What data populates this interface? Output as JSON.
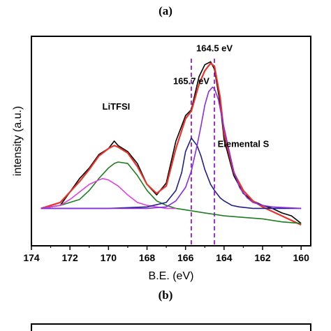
{
  "panel_top_label": "(a)",
  "panel_bottom_label": "(b)",
  "chart_data": {
    "type": "line",
    "title": "",
    "xlabel": "B.E. (eV)",
    "ylabel": "intensity (a.u.)",
    "x_reversed": true,
    "xlim": [
      174,
      159.5
    ],
    "ylim": [
      -0.25,
      1.15
    ],
    "x_ticks": [
      174,
      172,
      170,
      168,
      166,
      164,
      162,
      160
    ],
    "y_ticks_shown": false,
    "annotations": [
      {
        "text": "164.5 eV",
        "x": 164.5,
        "y": 1.05
      },
      {
        "text": "165.7 eV",
        "x": 165.7,
        "y": 0.83
      },
      {
        "text": "LiTFSI",
        "x": 169.6,
        "y": 0.66
      },
      {
        "text": "Elemental S",
        "x": 163.0,
        "y": 0.41
      }
    ],
    "reference_lines": [
      {
        "x": 165.7,
        "style": "dashed",
        "color": "#9b30d0"
      },
      {
        "x": 164.5,
        "style": "dashed",
        "color": "#9b30d0"
      }
    ],
    "series": [
      {
        "color": "#000000",
        "x": [
          173.5,
          172.5,
          171.5,
          171.0,
          170.5,
          170.0,
          169.7,
          169.5,
          169.0,
          168.5,
          168.0,
          167.5,
          167.0,
          166.5,
          166.0,
          165.7,
          165.3,
          165.0,
          164.7,
          164.5,
          164.2,
          164.0,
          163.5,
          163.0,
          162.5,
          162.0,
          161.5,
          161.0,
          160.5,
          160.0
        ],
        "y": [
          0.0,
          0.02,
          0.2,
          0.27,
          0.36,
          0.4,
          0.45,
          0.42,
          0.38,
          0.3,
          0.16,
          0.09,
          0.17,
          0.45,
          0.62,
          0.66,
          0.88,
          0.96,
          0.98,
          0.93,
          0.7,
          0.46,
          0.22,
          0.1,
          0.05,
          0.02,
          0.0,
          -0.03,
          -0.05,
          -0.1
        ]
      },
      {
        "color": "#e8332a",
        "x": [
          173.5,
          172.5,
          171.5,
          171.0,
          170.5,
          170.0,
          169.7,
          169.5,
          169.0,
          168.5,
          168.0,
          167.5,
          167.0,
          166.5,
          166.0,
          165.7,
          165.3,
          165.0,
          164.7,
          164.5,
          164.2,
          164.0,
          163.5,
          163.0,
          162.5,
          162.0,
          161.5,
          161.0,
          160.5,
          160.0
        ],
        "y": [
          0.0,
          0.04,
          0.18,
          0.26,
          0.35,
          0.4,
          0.42,
          0.41,
          0.37,
          0.28,
          0.16,
          0.1,
          0.15,
          0.4,
          0.6,
          0.65,
          0.83,
          0.92,
          0.97,
          0.95,
          0.74,
          0.5,
          0.24,
          0.12,
          0.05,
          0.01,
          -0.02,
          -0.05,
          -0.08,
          -0.11
        ]
      },
      {
        "color": "#1e7d1e",
        "x": [
          173.5,
          172.5,
          171.5,
          171.0,
          170.5,
          170.0,
          169.7,
          169.5,
          169.0,
          168.5,
          168.0,
          167.5,
          167.0,
          166.5,
          166.0,
          165.0,
          164.0,
          163.0,
          162.0,
          161.0,
          160.0
        ],
        "y": [
          0.0,
          0.02,
          0.06,
          0.12,
          0.2,
          0.27,
          0.3,
          0.31,
          0.3,
          0.22,
          0.12,
          0.05,
          0.02,
          0.0,
          -0.01,
          -0.03,
          -0.05,
          -0.06,
          -0.07,
          -0.09,
          -0.1
        ]
      },
      {
        "color": "#e040e0",
        "x": [
          173.5,
          172.5,
          172.0,
          171.5,
          171.0,
          170.5,
          170.3,
          170.0,
          169.5,
          169.0,
          168.5,
          168.0,
          167.5,
          167.0,
          166.5
        ],
        "y": [
          0.0,
          0.02,
          0.06,
          0.11,
          0.16,
          0.19,
          0.2,
          0.19,
          0.15,
          0.09,
          0.04,
          0.02,
          0.01,
          0.0,
          0.0
        ]
      },
      {
        "color": "#1f1f8a",
        "x": [
          173.5,
          170.0,
          168.0,
          167.0,
          166.5,
          166.2,
          166.0,
          165.7,
          165.4,
          165.2,
          165.0,
          164.7,
          164.5,
          164.2,
          164.0,
          163.6,
          163.2,
          162.5,
          161.5,
          160.0
        ],
        "y": [
          0.0,
          0.0,
          0.01,
          0.04,
          0.12,
          0.24,
          0.38,
          0.47,
          0.42,
          0.35,
          0.26,
          0.16,
          0.12,
          0.07,
          0.05,
          0.02,
          0.01,
          0.0,
          0.0,
          0.0
        ]
      },
      {
        "color": "#8a2be2",
        "x": [
          173.5,
          168.0,
          167.0,
          166.5,
          166.0,
          165.7,
          165.4,
          165.2,
          165.0,
          164.8,
          164.6,
          164.5,
          164.3,
          164.1,
          163.8,
          163.5,
          163.2,
          162.8,
          162.5,
          162.0,
          161.5,
          160.0
        ],
        "y": [
          0.0,
          0.0,
          0.01,
          0.05,
          0.14,
          0.25,
          0.42,
          0.55,
          0.69,
          0.78,
          0.81,
          0.8,
          0.73,
          0.6,
          0.42,
          0.25,
          0.14,
          0.07,
          0.04,
          0.02,
          0.01,
          0.0
        ]
      }
    ]
  }
}
